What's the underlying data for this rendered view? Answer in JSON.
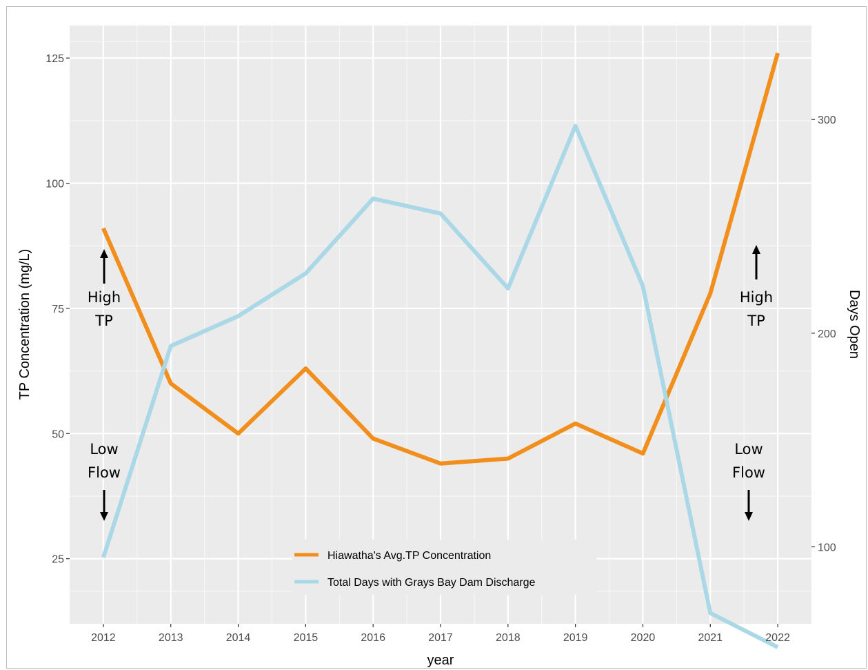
{
  "chart_data": {
    "type": "line",
    "xlabel": "year",
    "ylabel": "TP Concentration (mg/L)",
    "ylabel_right": "Days Open",
    "x": [
      2012,
      2013,
      2014,
      2015,
      2016,
      2017,
      2018,
      2019,
      2020,
      2021,
      2022
    ],
    "xlim": [
      2011.5,
      2022.5
    ],
    "ylim": [
      12,
      131.5
    ],
    "ylim_right": [
      64,
      344
    ],
    "yticks": [
      25,
      50,
      75,
      100,
      125
    ],
    "yticks_right": [
      100,
      200,
      300
    ],
    "grid": true,
    "legend_position": "bottom-center",
    "series": [
      {
        "name": "Hiawatha's Avg.TP Concentration",
        "axis": "left",
        "color": "#f28e1c",
        "values": [
          91,
          60,
          50,
          63,
          49,
          44,
          45,
          52,
          46,
          78,
          126
        ]
      },
      {
        "name": "Total Days with Grays Bay Dam Discharge",
        "axis": "right",
        "color": "#aad8e6",
        "values": [
          95,
          194,
          208,
          228,
          263,
          256,
          221,
          297,
          222,
          69,
          53
        ]
      }
    ],
    "annotations": [
      {
        "lines": [
          "High",
          "TP"
        ],
        "arrow": "up",
        "year": 2012
      },
      {
        "lines": [
          "Low",
          "Flow"
        ],
        "arrow": "down",
        "year": 2012
      },
      {
        "lines": [
          "High",
          "TP"
        ],
        "arrow": "up",
        "year": 2022
      },
      {
        "lines": [
          "Low",
          "Flow"
        ],
        "arrow": "down",
        "year": 2022
      }
    ]
  }
}
